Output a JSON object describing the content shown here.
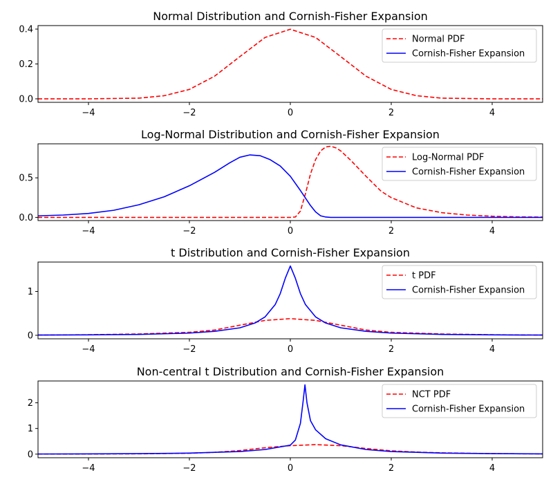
{
  "chart_data": [
    {
      "type": "line",
      "title": "Normal Distribution and Cornish-Fisher Expansion",
      "xlim": [
        -5,
        5
      ],
      "ylim": [
        -0.02,
        0.42
      ],
      "x_ticks": [
        -4,
        -2,
        0,
        2,
        4
      ],
      "y_ticks": [
        0.0,
        0.2,
        0.4
      ],
      "y_tick_labels": [
        "0.0",
        "0.2",
        "0.4"
      ],
      "legend_position": "top-right",
      "series": [
        {
          "name": "Normal PDF",
          "style": "dashed",
          "color": "#ff0000",
          "points": [
            [
              -5,
              0
            ],
            [
              -4,
              0.0001
            ],
            [
              -3,
              0.004
            ],
            [
              -2.5,
              0.018
            ],
            [
              -2,
              0.054
            ],
            [
              -1.5,
              0.13
            ],
            [
              -1,
              0.242
            ],
            [
              -0.5,
              0.352
            ],
            [
              0,
              0.399
            ],
            [
              0.5,
              0.352
            ],
            [
              1,
              0.242
            ],
            [
              1.5,
              0.13
            ],
            [
              2,
              0.054
            ],
            [
              2.5,
              0.018
            ],
            [
              3,
              0.004
            ],
            [
              4,
              0.0001
            ],
            [
              5,
              0
            ]
          ]
        },
        {
          "name": "Cornish-Fisher Expansion",
          "style": "solid",
          "color": "#0000ff",
          "points": []
        }
      ]
    },
    {
      "type": "line",
      "title": "Log-Normal Distribution and Cornish-Fisher Expansion",
      "xlim": [
        -5,
        5
      ],
      "ylim": [
        -0.04,
        0.93
      ],
      "x_ticks": [
        -4,
        -2,
        0,
        2,
        4
      ],
      "y_ticks": [
        0.0,
        0.5
      ],
      "y_tick_labels": [
        "0.0",
        "0.5"
      ],
      "legend_position": "top-right",
      "series": [
        {
          "name": "Log-Normal PDF",
          "style": "dashed",
          "color": "#ff0000",
          "points": [
            [
              -5,
              0
            ],
            [
              0,
              0
            ],
            [
              0.1,
              0.005
            ],
            [
              0.2,
              0.08
            ],
            [
              0.3,
              0.3
            ],
            [
              0.4,
              0.55
            ],
            [
              0.5,
              0.73
            ],
            [
              0.6,
              0.84
            ],
            [
              0.7,
              0.89
            ],
            [
              0.8,
              0.9
            ],
            [
              0.9,
              0.88
            ],
            [
              1,
              0.84
            ],
            [
              1.2,
              0.72
            ],
            [
              1.5,
              0.52
            ],
            [
              1.8,
              0.33
            ],
            [
              2,
              0.25
            ],
            [
              2.5,
              0.12
            ],
            [
              3,
              0.06
            ],
            [
              3.5,
              0.03
            ],
            [
              4,
              0.015
            ],
            [
              4.5,
              0.007
            ],
            [
              5,
              0.004
            ]
          ]
        },
        {
          "name": "Cornish-Fisher Expansion",
          "style": "solid",
          "color": "#0000ff",
          "points": [
            [
              -5,
              0.02
            ],
            [
              -4.5,
              0.03
            ],
            [
              -4,
              0.05
            ],
            [
              -3.5,
              0.09
            ],
            [
              -3,
              0.16
            ],
            [
              -2.5,
              0.26
            ],
            [
              -2,
              0.4
            ],
            [
              -1.5,
              0.57
            ],
            [
              -1.2,
              0.69
            ],
            [
              -1,
              0.76
            ],
            [
              -0.8,
              0.79
            ],
            [
              -0.6,
              0.78
            ],
            [
              -0.4,
              0.73
            ],
            [
              -0.2,
              0.65
            ],
            [
              0,
              0.52
            ],
            [
              0.2,
              0.34
            ],
            [
              0.4,
              0.15
            ],
            [
              0.5,
              0.07
            ],
            [
              0.6,
              0.02
            ],
            [
              0.7,
              0.005
            ],
            [
              0.8,
              0
            ],
            [
              5,
              0
            ]
          ]
        }
      ]
    },
    {
      "type": "line",
      "title": "t Distribution and Cornish-Fisher Expansion",
      "xlim": [
        -5,
        5
      ],
      "ylim": [
        -0.08,
        1.67
      ],
      "x_ticks": [
        -4,
        -2,
        0,
        2,
        4
      ],
      "y_ticks": [
        0,
        1
      ],
      "y_tick_labels": [
        "0",
        "1"
      ],
      "legend_position": "top-right",
      "series": [
        {
          "name": "t PDF",
          "style": "dashed",
          "color": "#ff0000",
          "points": [
            [
              -5,
              0.005
            ],
            [
              -4,
              0.013
            ],
            [
              -3,
              0.03
            ],
            [
              -2,
              0.068
            ],
            [
              -1.5,
              0.12
            ],
            [
              -1,
              0.23
            ],
            [
              -0.5,
              0.34
            ],
            [
              0,
              0.38
            ],
            [
              0.5,
              0.34
            ],
            [
              1,
              0.23
            ],
            [
              1.5,
              0.12
            ],
            [
              2,
              0.068
            ],
            [
              3,
              0.03
            ],
            [
              4,
              0.013
            ],
            [
              5,
              0.005
            ]
          ]
        },
        {
          "name": "Cornish-Fisher Expansion",
          "style": "solid",
          "color": "#0000ff",
          "points": [
            [
              -5,
              0.005
            ],
            [
              -4,
              0.01
            ],
            [
              -3,
              0.02
            ],
            [
              -2,
              0.05
            ],
            [
              -1.5,
              0.09
            ],
            [
              -1,
              0.17
            ],
            [
              -0.7,
              0.28
            ],
            [
              -0.5,
              0.42
            ],
            [
              -0.3,
              0.7
            ],
            [
              -0.2,
              0.95
            ],
            [
              -0.1,
              1.3
            ],
            [
              0,
              1.58
            ],
            [
              0.1,
              1.3
            ],
            [
              0.2,
              0.95
            ],
            [
              0.3,
              0.7
            ],
            [
              0.5,
              0.42
            ],
            [
              0.7,
              0.28
            ],
            [
              1,
              0.17
            ],
            [
              1.5,
              0.09
            ],
            [
              2,
              0.05
            ],
            [
              3,
              0.02
            ],
            [
              4,
              0.01
            ],
            [
              5,
              0.005
            ]
          ]
        }
      ]
    },
    {
      "type": "line",
      "title": "Non-central t Distribution and Cornish-Fisher Expansion",
      "xlim": [
        -5,
        5
      ],
      "ylim": [
        -0.14,
        2.85
      ],
      "x_ticks": [
        -4,
        -2,
        0,
        2,
        4
      ],
      "y_ticks": [
        0,
        1,
        2
      ],
      "y_tick_labels": [
        "0",
        "1",
        "2"
      ],
      "legend_position": "top-right",
      "series": [
        {
          "name": "NCT PDF",
          "style": "dashed",
          "color": "#ff0000",
          "points": [
            [
              -5,
              0.002
            ],
            [
              -4,
              0.005
            ],
            [
              -3,
              0.012
            ],
            [
              -2,
              0.035
            ],
            [
              -1.5,
              0.07
            ],
            [
              -1,
              0.14
            ],
            [
              -0.5,
              0.25
            ],
            [
              0,
              0.33
            ],
            [
              0.5,
              0.37
            ],
            [
              1,
              0.33
            ],
            [
              1.5,
              0.22
            ],
            [
              2,
              0.13
            ],
            [
              2.5,
              0.08
            ],
            [
              3,
              0.05
            ],
            [
              4,
              0.02
            ],
            [
              5,
              0.01
            ]
          ]
        },
        {
          "name": "Cornish-Fisher Expansion",
          "style": "solid",
          "color": "#0000ff",
          "points": [
            [
              -5,
              0.005
            ],
            [
              -4,
              0.01
            ],
            [
              -3,
              0.02
            ],
            [
              -2,
              0.04
            ],
            [
              -1,
              0.1
            ],
            [
              -0.5,
              0.18
            ],
            [
              0,
              0.35
            ],
            [
              0.1,
              0.55
            ],
            [
              0.2,
              1.2
            ],
            [
              0.25,
              2.0
            ],
            [
              0.29,
              2.7
            ],
            [
              0.33,
              2.0
            ],
            [
              0.4,
              1.3
            ],
            [
              0.5,
              0.95
            ],
            [
              0.7,
              0.6
            ],
            [
              1,
              0.36
            ],
            [
              1.5,
              0.18
            ],
            [
              2,
              0.1
            ],
            [
              3,
              0.04
            ],
            [
              4,
              0.02
            ],
            [
              5,
              0.01
            ]
          ]
        }
      ]
    }
  ]
}
